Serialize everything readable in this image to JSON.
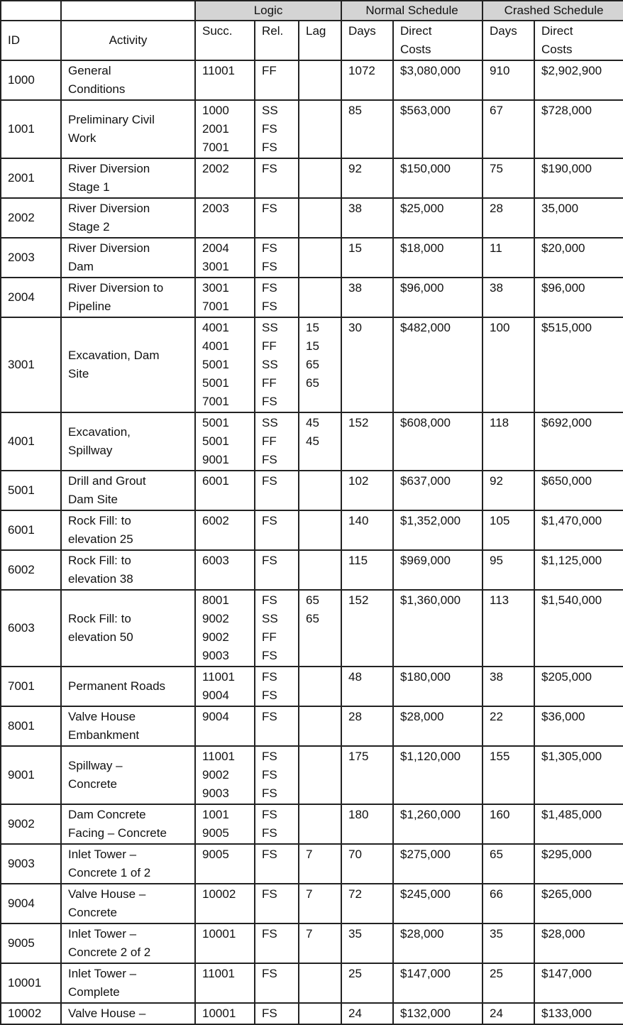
{
  "header": {
    "groups": {
      "logic": "Logic",
      "normal": "Normal Schedule",
      "crashed": "Crashed Schedule"
    },
    "columns": {
      "id": "ID",
      "activity": "Activity",
      "succ": "Succ.",
      "rel": "Rel.",
      "lag": "Lag",
      "n_days": "Days",
      "n_costs_1": "Direct",
      "n_costs_2": "Costs",
      "c_days": "Days",
      "c_costs_1": "Direct",
      "c_costs_2": "Costs"
    }
  },
  "rows": [
    {
      "id": "1000",
      "activity": [
        "General",
        "Conditions"
      ],
      "succ": [
        "11001"
      ],
      "rel": [
        "FF"
      ],
      "lag": [],
      "nd": "1072",
      "nc": "$3,080,000",
      "cd": "910",
      "cc": "$2,902,900"
    },
    {
      "id": "1001",
      "activity": [
        "Preliminary Civil",
        "Work"
      ],
      "succ": [
        "1000",
        "2001",
        "7001"
      ],
      "rel": [
        "SS",
        "FS",
        "FS"
      ],
      "lag": [],
      "nd": "85",
      "nc": "$563,000",
      "cd": "67",
      "cc": "$728,000"
    },
    {
      "id": "2001",
      "activity": [
        "River Diversion",
        "Stage 1"
      ],
      "succ": [
        "2002"
      ],
      "rel": [
        "FS"
      ],
      "lag": [],
      "nd": "92",
      "nc": "$150,000",
      "cd": "75",
      "cc": "$190,000"
    },
    {
      "id": "2002",
      "activity": [
        "River Diversion",
        "Stage 2"
      ],
      "succ": [
        "2003"
      ],
      "rel": [
        "FS"
      ],
      "lag": [],
      "nd": "38",
      "nc": "$25,000",
      "cd": "28",
      "cc": "35,000"
    },
    {
      "id": "2003",
      "activity": [
        "River Diversion",
        "Dam"
      ],
      "succ": [
        "2004",
        "3001"
      ],
      "rel": [
        "FS",
        "FS"
      ],
      "lag": [],
      "nd": "15",
      "nc": "$18,000",
      "cd": "11",
      "cc": "$20,000"
    },
    {
      "id": "2004",
      "activity": [
        "River Diversion to",
        "Pipeline"
      ],
      "succ": [
        "3001",
        "7001"
      ],
      "rel": [
        "FS",
        "FS"
      ],
      "lag": [],
      "nd": "38",
      "nc": "$96,000",
      "cd": "38",
      "cc": "$96,000"
    },
    {
      "id": "3001",
      "activity": [
        "Excavation, Dam",
        "Site"
      ],
      "succ": [
        "4001",
        "4001",
        "5001",
        "5001",
        "7001"
      ],
      "rel": [
        "SS",
        "FF",
        "SS",
        "FF",
        "FS"
      ],
      "lag": [
        "15",
        "15",
        "65",
        "65"
      ],
      "nd": "30",
      "nc": "$482,000",
      "cd": "100",
      "cc": "$515,000"
    },
    {
      "id": "4001",
      "activity": [
        "Excavation,",
        "Spillway"
      ],
      "succ": [
        "5001",
        "5001",
        "9001"
      ],
      "rel": [
        "SS",
        "FF",
        "FS"
      ],
      "lag": [
        "45",
        "45"
      ],
      "nd": "152",
      "nc": "$608,000",
      "cd": "118",
      "cc": "$692,000"
    },
    {
      "id": "5001",
      "activity": [
        "Drill and Grout",
        "Dam Site"
      ],
      "succ": [
        "6001"
      ],
      "rel": [
        "FS"
      ],
      "lag": [],
      "nd": "102",
      "nc": "$637,000",
      "cd": "92",
      "cc": "$650,000"
    },
    {
      "id": "6001",
      "activity": [
        "Rock Fill: to",
        "elevation 25"
      ],
      "succ": [
        "6002"
      ],
      "rel": [
        "FS"
      ],
      "lag": [],
      "nd": "140",
      "nc": "$1,352,000",
      "cd": "105",
      "cc": "$1,470,000"
    },
    {
      "id": "6002",
      "activity": [
        "Rock Fill: to",
        "elevation 38"
      ],
      "succ": [
        "6003"
      ],
      "rel": [
        "FS"
      ],
      "lag": [],
      "nd": "115",
      "nc": "$969,000",
      "cd": "95",
      "cc": "$1,125,000"
    },
    {
      "id": "6003",
      "activity": [
        "Rock Fill: to",
        "elevation 50"
      ],
      "succ": [
        "8001",
        "9002",
        "9002",
        "9003"
      ],
      "rel": [
        "FS",
        "SS",
        "FF",
        "FS"
      ],
      "lag": [
        "65",
        "65"
      ],
      "nd": "152",
      "nc": "$1,360,000",
      "cd": "113",
      "cc": "$1,540,000"
    },
    {
      "id": "7001",
      "activity": [
        "Permanent Roads"
      ],
      "succ": [
        "11001",
        "9004"
      ],
      "rel": [
        "FS",
        "FS"
      ],
      "lag": [],
      "nd": "48",
      "nc": "$180,000",
      "cd": "38",
      "cc": "$205,000"
    },
    {
      "id": "8001",
      "activity": [
        "Valve House",
        "Embankment"
      ],
      "succ": [
        "9004"
      ],
      "rel": [
        "FS"
      ],
      "lag": [],
      "nd": "28",
      "nc": "$28,000",
      "cd": "22",
      "cc": "$36,000"
    },
    {
      "id": "9001",
      "activity": [
        "Spillway –",
        "Concrete"
      ],
      "succ": [
        "11001",
        "9002",
        "9003"
      ],
      "rel": [
        "FS",
        "FS",
        "FS"
      ],
      "lag": [],
      "nd": "175",
      "nc": "$1,120,000",
      "cd": "155",
      "cc": "$1,305,000"
    },
    {
      "id": "9002",
      "activity": [
        "Dam Concrete",
        "Facing – Concrete"
      ],
      "succ": [
        "1001",
        "9005"
      ],
      "rel": [
        "FS",
        "FS"
      ],
      "lag": [],
      "nd": "180",
      "nc": "$1,260,000",
      "cd": "160",
      "cc": "$1,485,000"
    },
    {
      "id": "9003",
      "activity": [
        "Inlet Tower –",
        "Concrete 1 of 2"
      ],
      "succ": [
        "9005"
      ],
      "rel": [
        "FS"
      ],
      "lag": [
        "7"
      ],
      "nd": "70",
      "nc": "$275,000",
      "cd": "65",
      "cc": "$295,000"
    },
    {
      "id": "9004",
      "activity": [
        "Valve House –",
        "Concrete"
      ],
      "succ": [
        "10002"
      ],
      "rel": [
        "FS"
      ],
      "lag": [
        "7"
      ],
      "nd": "72",
      "nc": "$245,000",
      "cd": "66",
      "cc": "$265,000"
    },
    {
      "id": "9005",
      "activity": [
        "Inlet Tower –",
        "Concrete 2 of 2"
      ],
      "succ": [
        "10001"
      ],
      "rel": [
        "FS"
      ],
      "lag": [
        "7"
      ],
      "nd": "35",
      "nc": "$28,000",
      "cd": "35",
      "cc": "$28,000"
    },
    {
      "id": "10001",
      "activity": [
        "Inlet Tower –",
        "Complete"
      ],
      "succ": [
        "11001"
      ],
      "rel": [
        "FS"
      ],
      "lag": [],
      "nd": "25",
      "nc": "$147,000",
      "cd": "25",
      "cc": "$147,000"
    },
    {
      "id": "10002",
      "activity": [
        "Valve House –"
      ],
      "succ": [
        "10001"
      ],
      "rel": [
        "FS"
      ],
      "lag": [],
      "nd": "24",
      "nc": "$132,000",
      "cd": "24",
      "cc": "$133,000"
    }
  ]
}
